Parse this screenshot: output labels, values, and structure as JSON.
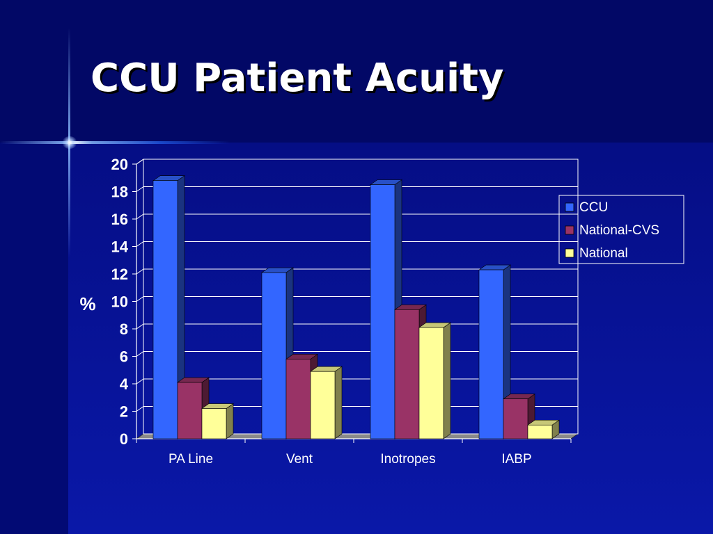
{
  "slide": {
    "title": "CCU Patient Acuity"
  },
  "chart_data": {
    "type": "bar",
    "ylabel": "%",
    "xlabel": "",
    "ylim": [
      0,
      20
    ],
    "yticks": [
      0,
      2,
      4,
      6,
      8,
      10,
      12,
      14,
      16,
      18,
      20
    ],
    "categories": [
      "PA Line",
      "Vent",
      "Inotropes",
      "IABP"
    ],
    "series": [
      {
        "name": "CCU",
        "values": [
          18.8,
          12.1,
          18.5,
          12.3
        ],
        "color": "#3366ff"
      },
      {
        "name": "National-CVS",
        "values": [
          4.1,
          5.8,
          9.4,
          2.9
        ],
        "color": "#993366"
      },
      {
        "name": "National",
        "values": [
          2.2,
          4.9,
          8.1,
          1.0
        ],
        "color": "#ffff99"
      }
    ],
    "grid": true,
    "legend": "right",
    "style": "3d"
  },
  "colors": {
    "background": "#0a18a8",
    "title": "#ffffff",
    "gridline": "#ffffff"
  }
}
